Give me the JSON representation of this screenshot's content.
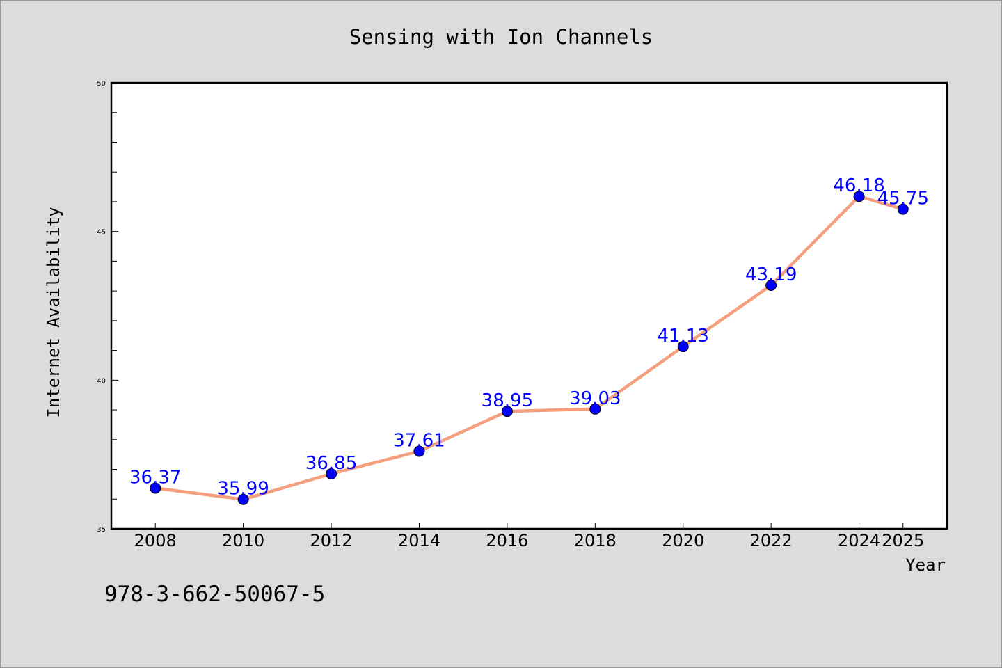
{
  "chart_data": {
    "type": "line",
    "title": "Sensing with Ion Channels",
    "xlabel": "Year",
    "ylabel": "Internet Availability",
    "x": [
      "2008",
      "2010",
      "2012",
      "2014",
      "2016",
      "2018",
      "2020",
      "2022",
      "2024",
      "2025"
    ],
    "series": [
      {
        "values": [
          36.37,
          35.99,
          36.85,
          37.61,
          38.95,
          39.03,
          41.13,
          43.19,
          46.18,
          45.75
        ],
        "data_labels": [
          "36.37",
          "35.99",
          "36.85",
          "37.61",
          "38.95",
          "39.03",
          "41.13",
          "43.19",
          "46.18",
          "45.75"
        ]
      }
    ],
    "ylim": [
      35,
      50
    ],
    "yticks": [
      "35",
      "40",
      "45",
      "50"
    ],
    "grid": false,
    "legend": "none",
    "colors": {
      "line": "#f4a07e",
      "marker": "#0000ff",
      "data_label": "#0000ff",
      "background": "#dcdcdc",
      "plot_area": "#ffffff"
    }
  },
  "footer": {
    "isbn": "978-3-662-50067-5"
  }
}
